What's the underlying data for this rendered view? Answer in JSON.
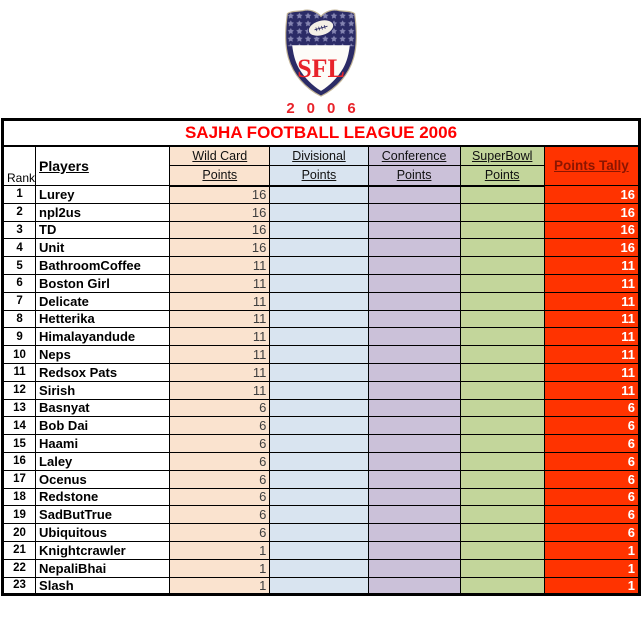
{
  "logo": {
    "monogram": "SFL",
    "year": "2006",
    "shield_icon": "sfl-shield-logo",
    "colors": {
      "navy": "#2b2b66",
      "sfl_red": "#e8232a",
      "star": "#9a9ac4",
      "ball": "#f4f0e6"
    }
  },
  "title": "SAJHA FOOTBALL LEAGUE 2006",
  "colors": {
    "title_red": "#ff0000",
    "wild_card_bg": "#fae3cf",
    "divisional_bg": "#d9e4f0",
    "conference_bg": "#cbc1d9",
    "superbowl_bg": "#c3d69b",
    "tally_bg": "#ff3300",
    "tally_header_text": "#8b1500"
  },
  "columns": {
    "rank": "Rank",
    "players": "Players",
    "groups": [
      {
        "line1": "Wild Card",
        "line2": "Points"
      },
      {
        "line1": "Divisional",
        "line2": "Points"
      },
      {
        "line1": "Conference",
        "line2": "Points"
      },
      {
        "line1": "SuperBowl",
        "line2": "Points"
      }
    ],
    "tally": "Points Tally"
  },
  "rows": [
    {
      "rank": 1,
      "player": "Lurey",
      "wild_card": 16,
      "divisional": "",
      "conference": "",
      "superbowl": "",
      "tally": 16
    },
    {
      "rank": 2,
      "player": "npl2us",
      "wild_card": 16,
      "divisional": "",
      "conference": "",
      "superbowl": "",
      "tally": 16
    },
    {
      "rank": 3,
      "player": "TD",
      "wild_card": 16,
      "divisional": "",
      "conference": "",
      "superbowl": "",
      "tally": 16
    },
    {
      "rank": 4,
      "player": "Unit",
      "wild_card": 16,
      "divisional": "",
      "conference": "",
      "superbowl": "",
      "tally": 16
    },
    {
      "rank": 5,
      "player": "BathroomCoffee",
      "wild_card": 11,
      "divisional": "",
      "conference": "",
      "superbowl": "",
      "tally": 11
    },
    {
      "rank": 6,
      "player": "Boston Girl",
      "wild_card": 11,
      "divisional": "",
      "conference": "",
      "superbowl": "",
      "tally": 11
    },
    {
      "rank": 7,
      "player": "Delicate",
      "wild_card": 11,
      "divisional": "",
      "conference": "",
      "superbowl": "",
      "tally": 11
    },
    {
      "rank": 8,
      "player": "Hetterika",
      "wild_card": 11,
      "divisional": "",
      "conference": "",
      "superbowl": "",
      "tally": 11
    },
    {
      "rank": 9,
      "player": "Himalayandude",
      "wild_card": 11,
      "divisional": "",
      "conference": "",
      "superbowl": "",
      "tally": 11
    },
    {
      "rank": 10,
      "player": "Neps",
      "wild_card": 11,
      "divisional": "",
      "conference": "",
      "superbowl": "",
      "tally": 11
    },
    {
      "rank": 11,
      "player": "Redsox Pats",
      "wild_card": 11,
      "divisional": "",
      "conference": "",
      "superbowl": "",
      "tally": 11
    },
    {
      "rank": 12,
      "player": "Sirish",
      "wild_card": 11,
      "divisional": "",
      "conference": "",
      "superbowl": "",
      "tally": 11
    },
    {
      "rank": 13,
      "player": "Basnyat",
      "wild_card": 6,
      "divisional": "",
      "conference": "",
      "superbowl": "",
      "tally": 6
    },
    {
      "rank": 14,
      "player": "Bob Dai",
      "wild_card": 6,
      "divisional": "",
      "conference": "",
      "superbowl": "",
      "tally": 6
    },
    {
      "rank": 15,
      "player": "Haami",
      "wild_card": 6,
      "divisional": "",
      "conference": "",
      "superbowl": "",
      "tally": 6
    },
    {
      "rank": 16,
      "player": "Laley",
      "wild_card": 6,
      "divisional": "",
      "conference": "",
      "superbowl": "",
      "tally": 6
    },
    {
      "rank": 17,
      "player": "Ocenus",
      "wild_card": 6,
      "divisional": "",
      "conference": "",
      "superbowl": "",
      "tally": 6
    },
    {
      "rank": 18,
      "player": "Redstone",
      "wild_card": 6,
      "divisional": "",
      "conference": "",
      "superbowl": "",
      "tally": 6
    },
    {
      "rank": 19,
      "player": "SadButTrue",
      "wild_card": 6,
      "divisional": "",
      "conference": "",
      "superbowl": "",
      "tally": 6
    },
    {
      "rank": 20,
      "player": "Ubiquitous",
      "wild_card": 6,
      "divisional": "",
      "conference": "",
      "superbowl": "",
      "tally": 6
    },
    {
      "rank": 21,
      "player": "Knightcrawler",
      "wild_card": 1,
      "divisional": "",
      "conference": "",
      "superbowl": "",
      "tally": 1
    },
    {
      "rank": 22,
      "player": "NepaliBhai",
      "wild_card": 1,
      "divisional": "",
      "conference": "",
      "superbowl": "",
      "tally": 1
    },
    {
      "rank": 23,
      "player": "Slash",
      "wild_card": 1,
      "divisional": "",
      "conference": "",
      "superbowl": "",
      "tally": 1
    }
  ]
}
